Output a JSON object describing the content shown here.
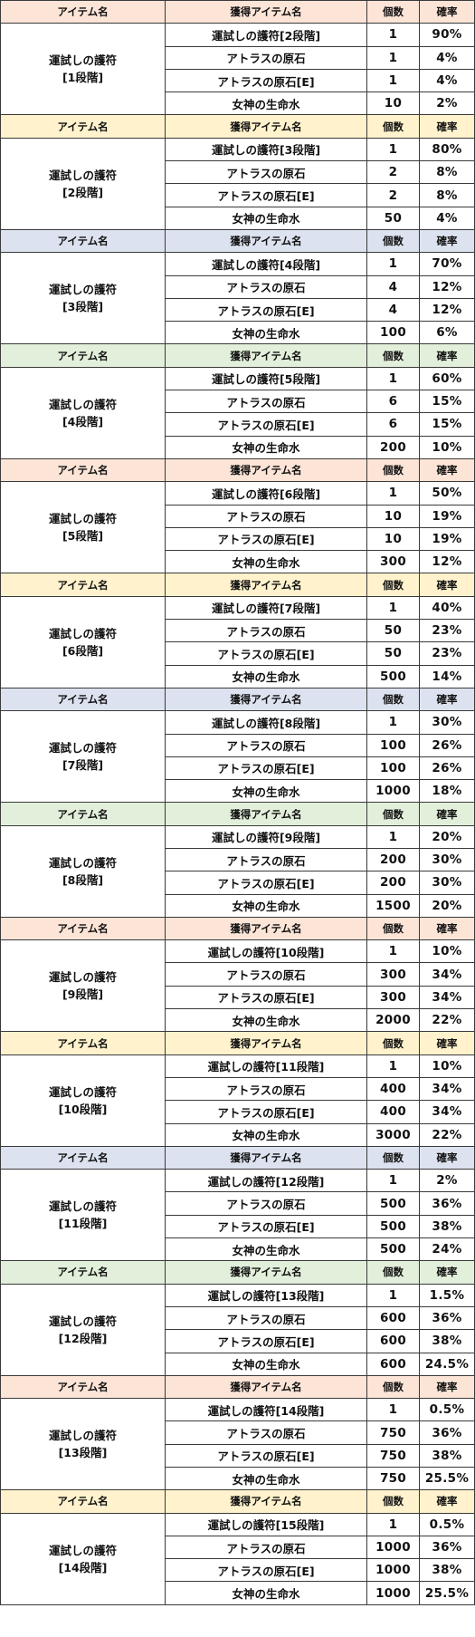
{
  "header": {
    "col_item": "アイテム名",
    "col_reward": "獲得アイテム名",
    "col_count": "個数",
    "col_rate": "確率"
  },
  "colors": {
    "header_cycle": [
      "#fce4d6",
      "#fff2cc",
      "#dce2ef",
      "#e2efda"
    ],
    "border": "#3a3a3a"
  },
  "groups": [
    {
      "item_line1": "運試しの護符",
      "item_line2": "[1段階]",
      "rows": [
        {
          "name": "運試しの護符[2段階]",
          "count": "1",
          "rate": "90%"
        },
        {
          "name": "アトラスの原石",
          "count": "1",
          "rate": "4%"
        },
        {
          "name": "アトラスの原石[E]",
          "count": "1",
          "rate": "4%"
        },
        {
          "name": "女神の生命水",
          "count": "10",
          "rate": "2%"
        }
      ]
    },
    {
      "item_line1": "運試しの護符",
      "item_line2": "[2段階]",
      "rows": [
        {
          "name": "運試しの護符[3段階]",
          "count": "1",
          "rate": "80%"
        },
        {
          "name": "アトラスの原石",
          "count": "2",
          "rate": "8%"
        },
        {
          "name": "アトラスの原石[E]",
          "count": "2",
          "rate": "8%"
        },
        {
          "name": "女神の生命水",
          "count": "50",
          "rate": "4%"
        }
      ]
    },
    {
      "item_line1": "運試しの護符",
      "item_line2": "[3段階]",
      "rows": [
        {
          "name": "運試しの護符[4段階]",
          "count": "1",
          "rate": "70%"
        },
        {
          "name": "アトラスの原石",
          "count": "4",
          "rate": "12%"
        },
        {
          "name": "アトラスの原石[E]",
          "count": "4",
          "rate": "12%"
        },
        {
          "name": "女神の生命水",
          "count": "100",
          "rate": "6%"
        }
      ]
    },
    {
      "item_line1": "運試しの護符",
      "item_line2": "[4段階]",
      "rows": [
        {
          "name": "運試しの護符[5段階]",
          "count": "1",
          "rate": "60%"
        },
        {
          "name": "アトラスの原石",
          "count": "6",
          "rate": "15%"
        },
        {
          "name": "アトラスの原石[E]",
          "count": "6",
          "rate": "15%"
        },
        {
          "name": "女神の生命水",
          "count": "200",
          "rate": "10%"
        }
      ]
    },
    {
      "item_line1": "運試しの護符",
      "item_line2": "[5段階]",
      "rows": [
        {
          "name": "運試しの護符[6段階]",
          "count": "1",
          "rate": "50%"
        },
        {
          "name": "アトラスの原石",
          "count": "10",
          "rate": "19%"
        },
        {
          "name": "アトラスの原石[E]",
          "count": "10",
          "rate": "19%"
        },
        {
          "name": "女神の生命水",
          "count": "300",
          "rate": "12%"
        }
      ]
    },
    {
      "item_line1": "運試しの護符",
      "item_line2": "[6段階]",
      "rows": [
        {
          "name": "運試しの護符[7段階]",
          "count": "1",
          "rate": "40%"
        },
        {
          "name": "アトラスの原石",
          "count": "50",
          "rate": "23%"
        },
        {
          "name": "アトラスの原石[E]",
          "count": "50",
          "rate": "23%"
        },
        {
          "name": "女神の生命水",
          "count": "500",
          "rate": "14%"
        }
      ]
    },
    {
      "item_line1": "運試しの護符",
      "item_line2": "[7段階]",
      "rows": [
        {
          "name": "運試しの護符[8段階]",
          "count": "1",
          "rate": "30%"
        },
        {
          "name": "アトラスの原石",
          "count": "100",
          "rate": "26%"
        },
        {
          "name": "アトラスの原石[E]",
          "count": "100",
          "rate": "26%"
        },
        {
          "name": "女神の生命水",
          "count": "1000",
          "rate": "18%"
        }
      ]
    },
    {
      "item_line1": "運試しの護符",
      "item_line2": "[8段階]",
      "rows": [
        {
          "name": "運試しの護符[9段階]",
          "count": "1",
          "rate": "20%"
        },
        {
          "name": "アトラスの原石",
          "count": "200",
          "rate": "30%"
        },
        {
          "name": "アトラスの原石[E]",
          "count": "200",
          "rate": "30%"
        },
        {
          "name": "女神の生命水",
          "count": "1500",
          "rate": "20%"
        }
      ]
    },
    {
      "item_line1": "運試しの護符",
      "item_line2": "[9段階]",
      "rows": [
        {
          "name": "運試しの護符[10段階]",
          "count": "1",
          "rate": "10%"
        },
        {
          "name": "アトラスの原石",
          "count": "300",
          "rate": "34%"
        },
        {
          "name": "アトラスの原石[E]",
          "count": "300",
          "rate": "34%"
        },
        {
          "name": "女神の生命水",
          "count": "2000",
          "rate": "22%"
        }
      ]
    },
    {
      "item_line1": "運試しの護符",
      "item_line2": "[10段階]",
      "rows": [
        {
          "name": "運試しの護符[11段階]",
          "count": "1",
          "rate": "10%"
        },
        {
          "name": "アトラスの原石",
          "count": "400",
          "rate": "34%"
        },
        {
          "name": "アトラスの原石[E]",
          "count": "400",
          "rate": "34%"
        },
        {
          "name": "女神の生命水",
          "count": "3000",
          "rate": "22%"
        }
      ]
    },
    {
      "item_line1": "運試しの護符",
      "item_line2": "[11段階]",
      "rows": [
        {
          "name": "運試しの護符[12段階]",
          "count": "1",
          "rate": "2%"
        },
        {
          "name": "アトラスの原石",
          "count": "500",
          "rate": "36%"
        },
        {
          "name": "アトラスの原石[E]",
          "count": "500",
          "rate": "38%"
        },
        {
          "name": "女神の生命水",
          "count": "500",
          "rate": "24%"
        }
      ]
    },
    {
      "item_line1": "運試しの護符",
      "item_line2": "[12段階]",
      "rows": [
        {
          "name": "運試しの護符[13段階]",
          "count": "1",
          "rate": "1.5%"
        },
        {
          "name": "アトラスの原石",
          "count": "600",
          "rate": "36%"
        },
        {
          "name": "アトラスの原石[E]",
          "count": "600",
          "rate": "38%"
        },
        {
          "name": "女神の生命水",
          "count": "600",
          "rate": "24.5%"
        }
      ]
    },
    {
      "item_line1": "運試しの護符",
      "item_line2": "[13段階]",
      "rows": [
        {
          "name": "運試しの護符[14段階]",
          "count": "1",
          "rate": "0.5%"
        },
        {
          "name": "アトラスの原石",
          "count": "750",
          "rate": "36%"
        },
        {
          "name": "アトラスの原石[E]",
          "count": "750",
          "rate": "38%"
        },
        {
          "name": "女神の生命水",
          "count": "750",
          "rate": "25.5%"
        }
      ]
    },
    {
      "item_line1": "運試しの護符",
      "item_line2": "[14段階]",
      "rows": [
        {
          "name": "運試しの護符[15段階]",
          "count": "1",
          "rate": "0.5%"
        },
        {
          "name": "アトラスの原石",
          "count": "1000",
          "rate": "36%"
        },
        {
          "name": "アトラスの原石[E]",
          "count": "1000",
          "rate": "38%"
        },
        {
          "name": "女神の生命水",
          "count": "1000",
          "rate": "25.5%"
        }
      ]
    }
  ]
}
